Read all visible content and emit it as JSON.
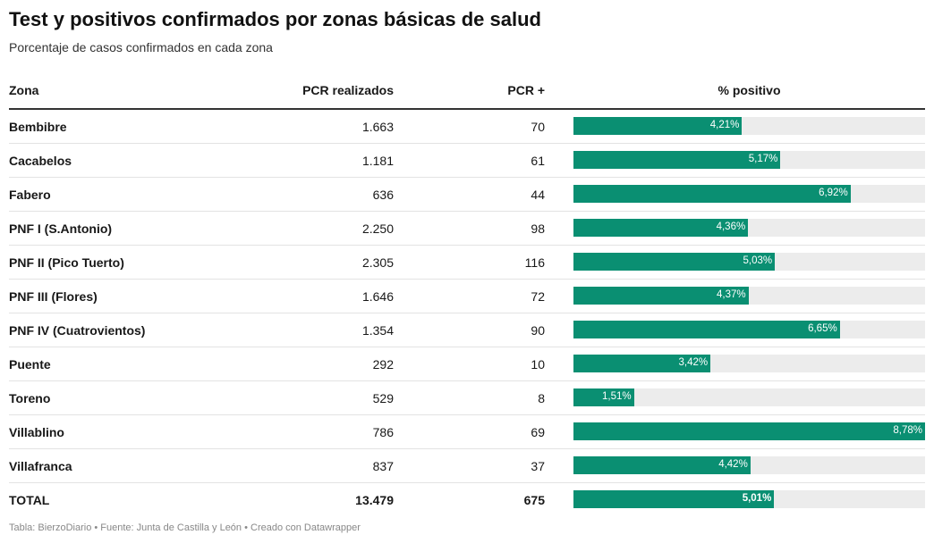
{
  "chart_data": {
    "type": "table",
    "title": "Test y positivos confirmados por zonas básicas de salud",
    "subtitle": "Porcentaje de casos confirmados en cada zona",
    "columns": [
      "Zona",
      "PCR realizados",
      "PCR +",
      "% positivo"
    ],
    "bar_max": 8.78,
    "bar_color": "#0a8f72",
    "track_color": "#ececec",
    "rows": [
      {
        "zona": "Bembibre",
        "pcr": "1.663",
        "positivos": "70",
        "pct": 4.21,
        "pct_label": "4,21%"
      },
      {
        "zona": "Cacabelos",
        "pcr": "1.181",
        "positivos": "61",
        "pct": 5.17,
        "pct_label": "5,17%"
      },
      {
        "zona": "Fabero",
        "pcr": "636",
        "positivos": "44",
        "pct": 6.92,
        "pct_label": "6,92%"
      },
      {
        "zona": "PNF I (S.Antonio)",
        "pcr": "2.250",
        "positivos": "98",
        "pct": 4.36,
        "pct_label": "4,36%"
      },
      {
        "zona": "PNF II (Pico Tuerto)",
        "pcr": "2.305",
        "positivos": "116",
        "pct": 5.03,
        "pct_label": "5,03%"
      },
      {
        "zona": "PNF III (Flores)",
        "pcr": "1.646",
        "positivos": "72",
        "pct": 4.37,
        "pct_label": "4,37%"
      },
      {
        "zona": "PNF IV (Cuatrovientos)",
        "pcr": "1.354",
        "positivos": "90",
        "pct": 6.65,
        "pct_label": "6,65%"
      },
      {
        "zona": "Puente",
        "pcr": "292",
        "positivos": "10",
        "pct": 3.42,
        "pct_label": "3,42%"
      },
      {
        "zona": "Toreno",
        "pcr": "529",
        "positivos": "8",
        "pct": 1.51,
        "pct_label": "1,51%"
      },
      {
        "zona": "Villablino",
        "pcr": "786",
        "positivos": "69",
        "pct": 8.78,
        "pct_label": "8,78%"
      },
      {
        "zona": "Villafranca",
        "pcr": "837",
        "positivos": "37",
        "pct": 4.42,
        "pct_label": "4,42%"
      },
      {
        "zona": "TOTAL",
        "pcr": "13.479",
        "positivos": "675",
        "pct": 5.01,
        "pct_label": "5,01%"
      }
    ]
  },
  "footer": "Tabla: BierzoDiario • Fuente: Junta de Castilla y León • Creado con Datawrapper"
}
